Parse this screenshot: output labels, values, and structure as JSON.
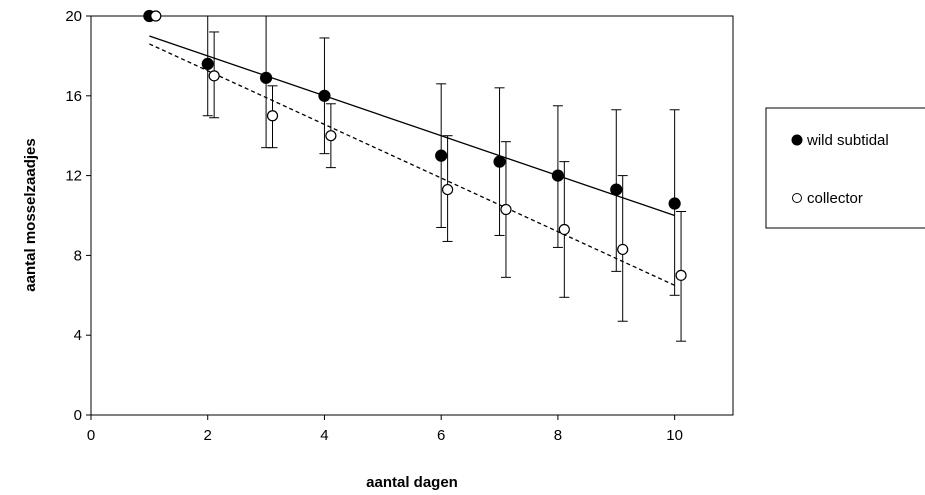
{
  "chart_data": {
    "type": "scatter",
    "title": "",
    "xlabel": "aantal dagen",
    "ylabel": "aantal mosselzaadjes",
    "xlim": [
      0,
      11
    ],
    "ylim": [
      0,
      20
    ],
    "xticks": [
      0,
      2,
      4,
      6,
      8,
      10
    ],
    "yticks": [
      0,
      4,
      8,
      12,
      16,
      20
    ],
    "x_tick_labels": [
      "0",
      "2",
      "4",
      "6",
      "8",
      "10"
    ],
    "y_tick_labels": [
      "0",
      "4",
      "8",
      "12",
      "16",
      "20"
    ],
    "grid": false,
    "legend_position": "right",
    "series": [
      {
        "name": "wild subtidal",
        "marker": "filled-circle",
        "color": "#000000",
        "x": [
          1,
          2,
          3,
          4,
          6,
          7,
          8,
          9,
          10
        ],
        "y": [
          20,
          17.6,
          16.9,
          16.0,
          13.0,
          12.7,
          12.0,
          11.3,
          10.6
        ],
        "err_low": [
          0,
          2.6,
          3.5,
          2.9,
          3.6,
          3.7,
          3.6,
          4.1,
          4.6
        ],
        "err_high": [
          0,
          2.6,
          3.5,
          2.9,
          3.6,
          3.7,
          3.5,
          4.0,
          4.7
        ],
        "trendline": {
          "style": "solid",
          "x": [
            1,
            10
          ],
          "y": [
            19.0,
            10.0
          ]
        }
      },
      {
        "name": "collector",
        "marker": "open-circle",
        "color": "#000000",
        "x": [
          1,
          2,
          3,
          4,
          6,
          7,
          8,
          9,
          10
        ],
        "y": [
          20,
          17.0,
          15.0,
          14.0,
          11.3,
          10.3,
          9.3,
          8.3,
          7.0
        ],
        "err_low": [
          0,
          2.1,
          1.6,
          1.6,
          2.6,
          3.4,
          3.4,
          3.6,
          3.3
        ],
        "err_high": [
          0,
          2.2,
          1.5,
          1.6,
          2.7,
          3.4,
          3.4,
          3.7,
          3.2
        ],
        "trendline": {
          "style": "dashed",
          "x": [
            1,
            10
          ],
          "y": [
            18.6,
            6.5
          ]
        }
      }
    ]
  }
}
